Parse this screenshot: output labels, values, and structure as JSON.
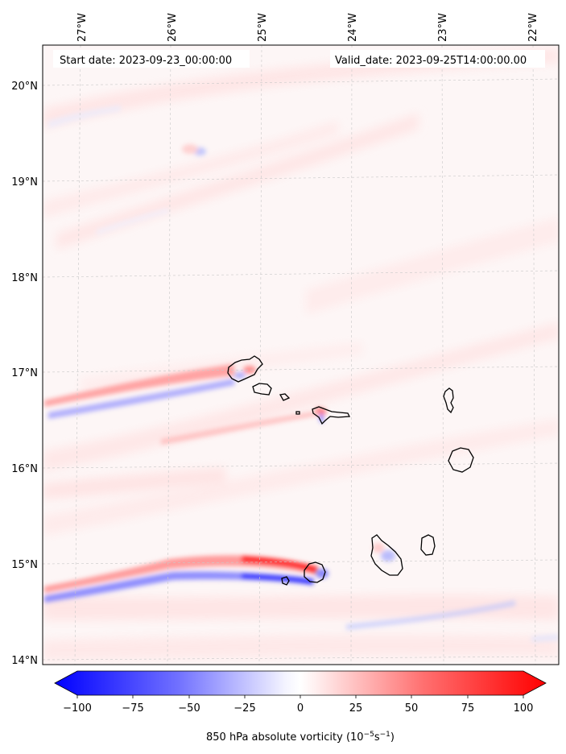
{
  "map": {
    "start_date_label": "Start date: 2023-09-23_00:00:00",
    "valid_date_label": "Valid_date: 2023-09-25T14:00:00.00",
    "lon_range": [
      -27.4,
      -21.8
    ],
    "lat_range": [
      13.95,
      20.45
    ],
    "lon_ticks": [
      {
        "value": -27,
        "label": "27°W"
      },
      {
        "value": -26,
        "label": "26°W"
      },
      {
        "value": -25,
        "label": "25°W"
      },
      {
        "value": -24,
        "label": "24°W"
      },
      {
        "value": -23,
        "label": "23°W"
      },
      {
        "value": -22,
        "label": "22°W"
      }
    ],
    "lat_ticks": [
      {
        "value": 20,
        "label": "20°N"
      },
      {
        "value": 19,
        "label": "19°N"
      },
      {
        "value": 18,
        "label": "18°N"
      },
      {
        "value": 17,
        "label": "17°N"
      },
      {
        "value": 16,
        "label": "16°N"
      },
      {
        "value": 15,
        "label": "15°N"
      },
      {
        "value": 14,
        "label": "14°N"
      }
    ],
    "gridlines": true
  },
  "colorbar": {
    "ticks": [
      "−100",
      "−75",
      "−50",
      "−25",
      "0",
      "25",
      "50",
      "75",
      "100"
    ],
    "range": [
      -100,
      100
    ],
    "label_main": "850 hPa absolute vorticity (10",
    "label_exp1": "−5",
    "label_mid": "s",
    "label_exp2": "−1",
    "label_end": ")",
    "colors": {
      "negative": "#0000ff",
      "zero": "#ffffff",
      "positive": "#ff0000"
    }
  }
}
